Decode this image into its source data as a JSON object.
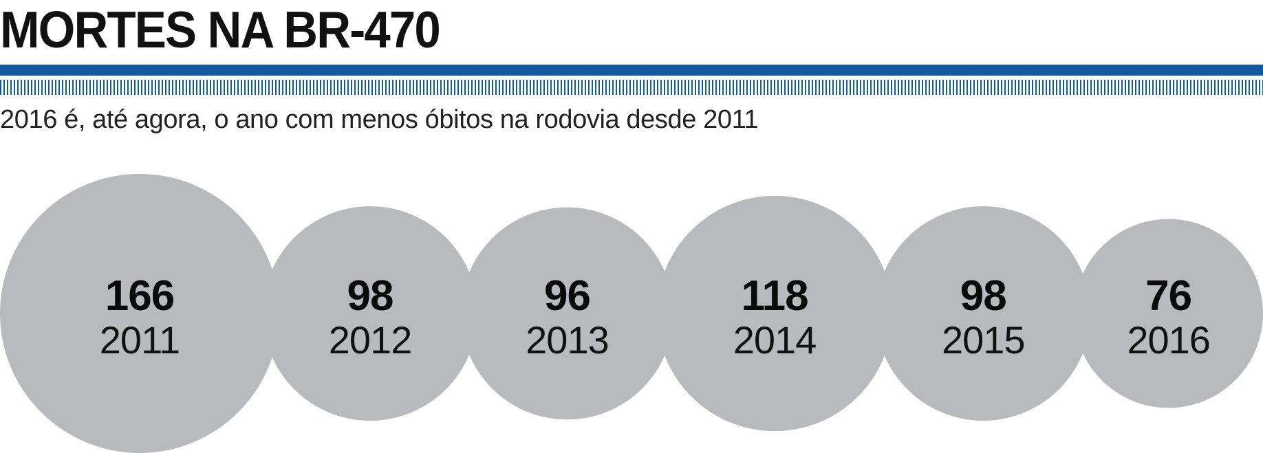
{
  "header": {
    "title": "MORTES NA BR-470",
    "subtitle": "2016 é, até agora, o ano com menos óbitos na rodovia desde 2011"
  },
  "colors": {
    "accent": "#0f5aa0",
    "bubble": "#b9babd",
    "text": "#111111"
  },
  "chart_data": {
    "type": "bubble",
    "title": "MORTES NA BR-470",
    "subtitle": "2016 é, até agora, o ano com menos óbitos na rodovia desde 2011",
    "categories": [
      "2011",
      "2012",
      "2013",
      "2014",
      "2015",
      "2016"
    ],
    "values": [
      166,
      98,
      96,
      118,
      98,
      76
    ],
    "legend": "none",
    "grid": false
  }
}
